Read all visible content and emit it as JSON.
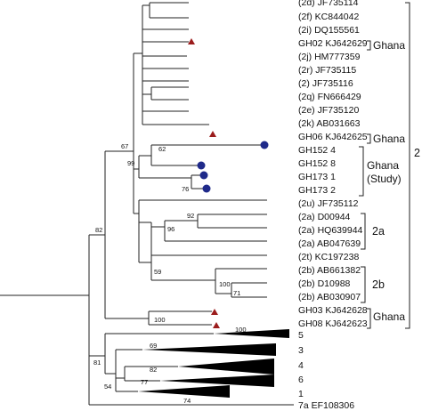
{
  "taxa": {
    "t01": "(2d) JF735114",
    "t02": "(2f) KC844042",
    "t03": "(2i) DQ155561",
    "t04": "GH02 KJ642629",
    "t05": "(2j) HM777359",
    "t06": "(2r) JF735115",
    "t07": "(2) JF735116",
    "t08": "(2q) FN666429",
    "t09": "(2e) JF735120",
    "t10": "(2k) AB031663",
    "t11": "GH06 KJ642625",
    "t12": "GH152 4",
    "t13": "GH152 8",
    "t14": "GH173 1",
    "t15": "GH173 2",
    "t16": "(2u) JF735112",
    "t17": "(2a) D00944",
    "t18": "(2a) HQ639944",
    "t19": "(2a) AB047639",
    "t20": "(2t) KC197238",
    "t21": "(2b) AB661382",
    "t22": "(2b) D10988",
    "t23": "(2b) AB030907",
    "t24": "GH03 KJ642628",
    "t25": "GH08 KJ642623",
    "t26": "7a EF108306"
  },
  "clades": {
    "c5": "5",
    "c3": "3",
    "c4": "4",
    "c6": "6",
    "c1": "1"
  },
  "groups": {
    "ghana1": "Ghana",
    "ghana2": "Ghana",
    "study_l1": "Ghana",
    "study_l2": "(Study)",
    "g2a": "2a",
    "g2b": "2b",
    "ghana3": "Ghana",
    "genotype2": "2"
  },
  "bootstrap": {
    "b67": "67",
    "b62": "62",
    "b99": "99",
    "b76": "76",
    "b82": "82",
    "b92": "92",
    "b96": "96",
    "b59": "59",
    "b100a": "100",
    "b71": "71",
    "b100b": "100",
    "b100c": "100",
    "b69": "69",
    "b81": "81",
    "b82b": "82",
    "b77": "77",
    "b54": "54",
    "b74": "74"
  },
  "colors": {
    "triangle_marker": "#9b1c1c",
    "circle_marker": "#1f2a8a",
    "branch": "#222222"
  }
}
